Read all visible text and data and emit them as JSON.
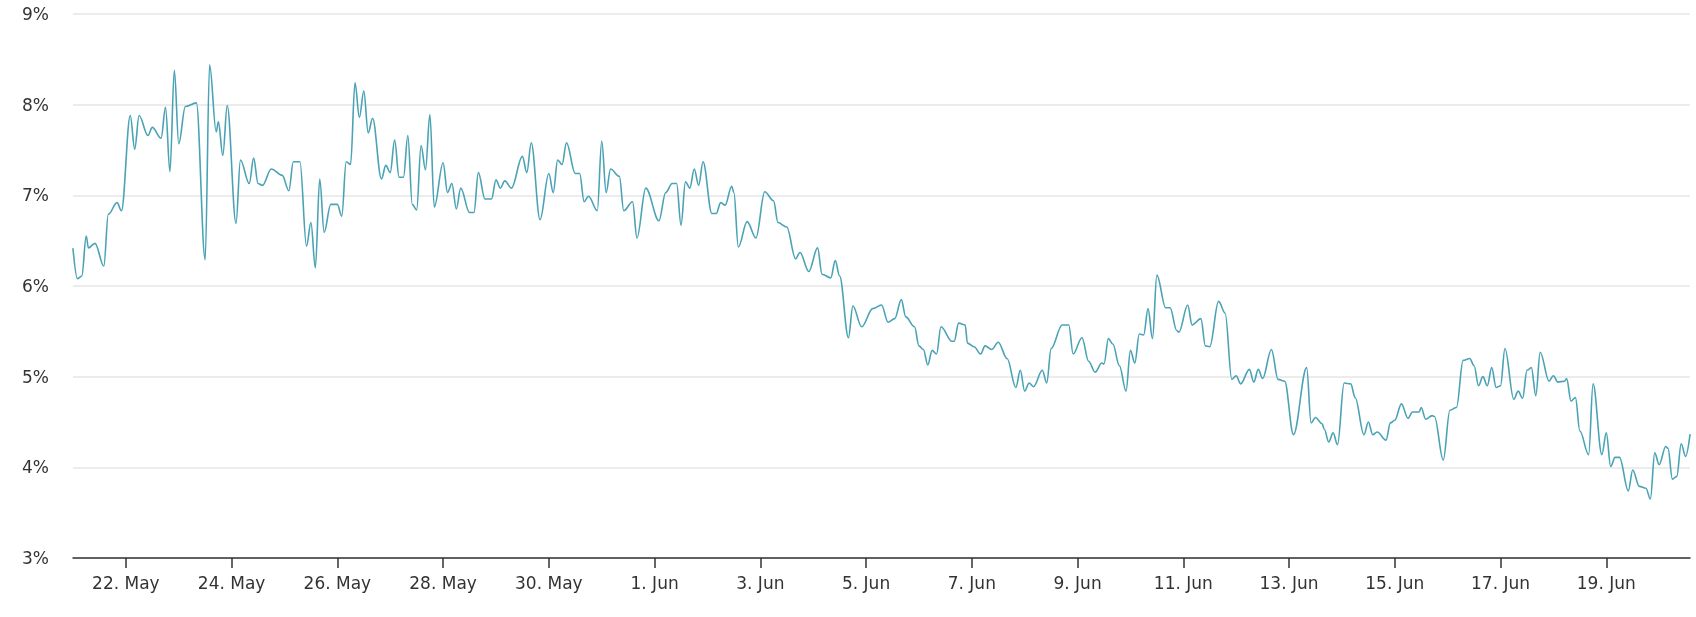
{
  "chart_data": {
    "type": "line",
    "x": [
      "--05-21T00:00",
      "--05-21T02:00",
      "--05-21T04:00",
      "--05-21T06:00",
      "--05-21T07:00",
      "--05-21T10:00",
      "--05-21T14:00",
      "--05-21T16:00",
      "--05-21T20:00",
      "--05-21T22:00",
      "--05-22T02:00",
      "--05-22T04:00",
      "--05-22T06:00",
      "--05-22T10:00",
      "--05-22T12:00",
      "--05-22T16:00",
      "--05-22T18:00",
      "--05-22T20:00",
      "--05-22T22:00",
      "--05-23T00:00",
      "--05-23T03:00",
      "--05-23T08:00",
      "--05-23T12:00",
      "--05-23T14:00",
      "--05-23T17:00",
      "--05-23T18:00",
      "--05-23T20:00",
      "--05-23T22:00",
      "--05-24T02:00",
      "--05-24T04:00",
      "--05-24T08:00",
      "--05-24T10:00",
      "--05-24T12:00",
      "--05-24T14:00",
      "--05-24T18:00",
      "--05-24T23:00",
      "--05-25T02:00",
      "--05-25T04:00",
      "--05-25T07:00",
      "--05-25T10:00",
      "--05-25T12:00",
      "--05-25T14:00",
      "--05-25T16:00",
      "--05-25T18:00",
      "--05-25T21:00",
      "--05-26T00:00",
      "--05-26T02:00",
      "--05-26T04:00",
      "--05-26T06:00",
      "--05-26T08:00",
      "--05-26T10:00",
      "--05-26T12:00",
      "--05-26T14:00",
      "--05-26T16:00",
      "--05-26T20:00",
      "--05-26T22:00",
      "--05-27T00:00",
      "--05-27T02:00",
      "--05-27T04:00",
      "--05-27T06:00",
      "--05-27T08:00",
      "--05-27T10:00",
      "--05-27T12:00",
      "--05-27T14:00",
      "--05-27T16:00",
      "--05-27T18:00",
      "--05-27T20:00",
      "--05-28T00:00",
      "--05-28T02:00",
      "--05-28T04:00",
      "--05-28T06:00",
      "--05-28T08:00",
      "--05-28T12:00",
      "--05-28T14:00",
      "--05-28T16:00",
      "--05-28T19:00",
      "--05-28T22:00",
      "--05-29T00:00",
      "--05-29T02:00",
      "--05-29T04:00",
      "--05-29T07:00",
      "--05-29T12:00",
      "--05-29T14:00",
      "--05-29T16:00",
      "--05-29T20:00",
      "--05-30T00:00",
      "--05-30T02:00",
      "--05-30T04:00",
      "--05-30T06:00",
      "--05-30T08:00",
      "--05-30T12:00",
      "--05-30T14:00",
      "--05-30T16:00",
      "--05-30T18:00",
      "--05-30T22:00",
      "--05-31T00:00",
      "--05-31T02:00",
      "--05-31T04:00",
      "--05-31T08:00",
      "--05-31T10:00",
      "--05-31T14:00",
      "--05-31T16:00",
      "--05-31T20:00",
      "--06-01T02:00",
      "--06-01T05:00",
      "--06-01T08:00",
      "--06-01T10:00",
      "--06-01T12:00",
      "--06-01T14:00",
      "--06-01T16:00",
      "--06-01T18:00",
      "--06-01T20:00",
      "--06-01T22:00",
      "--06-02T02:00",
      "--06-02T04:00",
      "--06-02T06:00",
      "--06-02T08:00",
      "--06-02T11:00",
      "--06-02T12:00",
      "--06-02T14:00",
      "--06-02T18:00",
      "--06-02T22:00",
      "--06-03T02:00",
      "--06-03T06:00",
      "--06-03T08:00",
      "--06-03T12:00",
      "--06-03T16:00",
      "--06-03T18:00",
      "--06-03T22:00",
      "--06-04T02:00",
      "--06-04T04:00",
      "--06-04T08:00",
      "--06-04T10:00",
      "--06-04T12:00",
      "--06-04T16:00",
      "--06-04T18:00",
      "--06-04T22:00",
      "--06-05T03:00",
      "--06-05T07:00",
      "--06-05T10:00",
      "--06-05T13:00",
      "--06-05T16:00",
      "--06-05T18:00",
      "--06-05T22:00",
      "--06-06T00:00",
      "--06-06T02:00",
      "--06-06T04:00",
      "--06-06T06:00",
      "--06-06T08:00",
      "--06-06T10:00",
      "--06-06T15:00",
      "--06-06T16:00",
      "--06-06T18:00",
      "--06-06T21:00",
      "--06-06T22:00",
      "--06-07T01:00",
      "--06-07T04:00",
      "--06-07T06:00",
      "--06-07T09:00",
      "--06-07T12:00",
      "--06-07T16:00",
      "--06-07T20:00",
      "--06-07T22:00",
      "--06-08T00:00",
      "--06-08T02:00",
      "--06-08T04:00",
      "--06-08T08:00",
      "--06-08T10:00",
      "--06-08T12:00",
      "--06-08T17:00",
      "--06-08T20:00",
      "--06-08T22:00",
      "--06-09T02:00",
      "--06-09T05:00",
      "--06-09T08:00",
      "--06-09T11:00",
      "--06-09T12:00",
      "--06-09T14:00",
      "--06-09T16:00",
      "--06-09T19:00",
      "--06-09T22:00",
      "--06-10T00:00",
      "--06-10T02:00",
      "--06-10T04:00",
      "--06-10T06:00",
      "--06-10T08:00",
      "--06-10T10:00",
      "--06-10T12:00",
      "--06-10T16:00",
      "--06-10T18:00",
      "--06-10T21:00",
      "--06-10T22:00",
      "--06-11T02:00",
      "--06-11T04:00",
      "--06-11T08:00",
      "--06-11T10:00",
      "--06-11T12:00",
      "--06-11T16:00",
      "--06-11T19:00",
      "--06-11T22:00",
      "--06-12T00:00",
      "--06-12T02:00",
      "--06-12T06:00",
      "--06-12T08:00",
      "--06-12T10:00",
      "--06-12T12:00",
      "--06-12T16:00",
      "--06-12T19:00",
      "--06-12T22:00",
      "--06-13T02:00",
      "--06-13T08:00",
      "--06-13T10:00",
      "--06-13T12:00",
      "--06-13T15:00",
      "--06-13T16:00",
      "--06-13T18:00",
      "--06-13T20:00",
      "--06-13T22:00",
      "--06-14T01:00",
      "--06-14T04:00",
      "--06-14T06:00",
      "--06-14T10:00",
      "--06-14T12:00",
      "--06-14T14:00",
      "--06-14T16:00",
      "--06-14T20:00",
      "--06-14T22:00",
      "--06-15T00:00",
      "--06-15T03:00",
      "--06-15T06:00",
      "--06-15T08:00",
      "--06-15T11:00",
      "--06-15T12:00",
      "--06-15T14:00",
      "--06-15T17:00",
      "--06-15T18:00",
      "--06-15T22:00",
      "--06-16T01:00",
      "--06-16T04:00",
      "--06-16T07:00",
      "--06-16T10:00",
      "--06-16T12:00",
      "--06-16T14:00",
      "--06-16T16:00",
      "--06-16T18:00",
      "--06-16T20:00",
      "--06-16T22:00",
      "--06-17T00:00",
      "--06-17T02:00",
      "--06-17T06:00",
      "--06-17T08:00",
      "--06-17T10:00",
      "--06-17T12:00",
      "--06-17T14:00",
      "--06-17T16:00",
      "--06-17T18:00",
      "--06-17T22:00",
      "--06-18T00:00",
      "--06-18T02:00",
      "--06-18T05:00",
      "--06-18T06:00",
      "--06-18T08:00",
      "--06-18T10:00",
      "--06-18T12:00",
      "--06-18T16:00",
      "--06-18T18:00",
      "--06-18T22:00",
      "--06-19T00:00",
      "--06-19T02:00",
      "--06-19T04:00",
      "--06-19T06:00",
      "--06-19T10:00",
      "--06-19T12:00",
      "--06-19T15:00",
      "--06-19T18:00",
      "--06-19T20:00",
      "--06-19T22:00",
      "--06-20T00:00",
      "--06-20T03:00",
      "--06-20T04:00",
      "--06-20T06:00",
      "--06-20T08:00",
      "--06-20T10:00",
      "--06-20T12:00",
      "--06-20T14:00"
    ],
    "series": [
      {
        "color": "#4aa3b5",
        "values": [
          6.41,
          6.08,
          6.11,
          6.55,
          6.42,
          6.47,
          6.22,
          6.79,
          6.92,
          6.83,
          7.88,
          7.51,
          7.88,
          7.66,
          7.75,
          7.63,
          7.97,
          7.26,
          8.38,
          7.57,
          7.98,
          8.02,
          6.29,
          8.44,
          7.7,
          7.81,
          7.44,
          7.99,
          6.69,
          7.39,
          7.13,
          7.41,
          7.13,
          7.11,
          7.29,
          7.22,
          7.05,
          7.37,
          7.37,
          6.44,
          6.7,
          6.2,
          7.18,
          6.59,
          6.9,
          6.9,
          6.77,
          7.37,
          7.34,
          8.24,
          7.86,
          8.15,
          7.69,
          7.85,
          7.18,
          7.33,
          7.25,
          7.61,
          7.2,
          7.2,
          7.66,
          6.9,
          6.84,
          7.55,
          7.28,
          7.89,
          6.87,
          7.36,
          7.03,
          7.13,
          6.85,
          7.08,
          6.81,
          6.81,
          7.25,
          6.96,
          6.96,
          7.17,
          7.08,
          7.16,
          7.08,
          7.43,
          7.25,
          7.58,
          6.73,
          7.24,
          7.03,
          7.39,
          7.34,
          7.58,
          7.24,
          7.24,
          6.93,
          6.99,
          6.83,
          7.6,
          7.03,
          7.29,
          7.21,
          6.83,
          6.93,
          6.53,
          7.08,
          6.72,
          7.03,
          7.13,
          7.13,
          6.67,
          7.15,
          7.08,
          7.29,
          7.11,
          7.37,
          6.8,
          6.8,
          6.92,
          6.89,
          7.1,
          7.03,
          6.43,
          6.71,
          6.53,
          7.04,
          6.94,
          6.7,
          6.65,
          6.3,
          6.37,
          6.16,
          6.42,
          6.13,
          6.09,
          6.28,
          6.11,
          5.43,
          5.78,
          5.55,
          5.75,
          5.79,
          5.6,
          5.64,
          5.85,
          5.66,
          5.55,
          5.34,
          5.3,
          5.13,
          5.29,
          5.25,
          5.55,
          5.39,
          5.39,
          5.59,
          5.57,
          5.37,
          5.33,
          5.25,
          5.34,
          5.3,
          5.38,
          5.2,
          4.88,
          5.07,
          4.84,
          4.93,
          4.89,
          5.07,
          4.93,
          5.31,
          5.57,
          5.57,
          5.25,
          5.43,
          5.17,
          5.05,
          5.15,
          5.14,
          5.42,
          5.36,
          5.12,
          4.84,
          5.29,
          5.15,
          5.47,
          5.46,
          5.75,
          5.42,
          6.12,
          5.76,
          5.76,
          5.51,
          5.49,
          5.79,
          5.57,
          5.64,
          5.34,
          5.33,
          5.83,
          5.7,
          4.97,
          5.01,
          4.92,
          5.08,
          4.94,
          5.08,
          4.98,
          5.3,
          4.97,
          4.95,
          4.36,
          5.1,
          4.49,
          4.55,
          4.48,
          4.42,
          4.28,
          4.38,
          4.25,
          4.93,
          4.92,
          4.77,
          4.36,
          4.5,
          4.36,
          4.39,
          4.3,
          4.49,
          4.52,
          4.7,
          4.54,
          4.61,
          4.61,
          4.66,
          4.53,
          4.57,
          4.56,
          4.08,
          4.63,
          4.66,
          5.18,
          5.2,
          5.12,
          4.9,
          5.0,
          4.9,
          5.1,
          4.88,
          4.9,
          5.31,
          4.75,
          4.84,
          4.76,
          5.07,
          5.1,
          4.79,
          5.27,
          4.95,
          5.01,
          4.94,
          4.95,
          4.98,
          4.73,
          4.77,
          4.4,
          4.14,
          4.92,
          4.14,
          4.38,
          4.01,
          4.11,
          4.11,
          3.74,
          3.97,
          3.79,
          3.77,
          3.65,
          4.16,
          4.03,
          4.23,
          4.21,
          3.87,
          3.9,
          4.26,
          4.12,
          4.36
        ]
      }
    ],
    "xlim": [
      "--05-21T00:00",
      "--06-20T14:00"
    ],
    "xticks": [
      {
        "value": "--05-22",
        "label": "22. May"
      },
      {
        "value": "--05-24",
        "label": "24. May"
      },
      {
        "value": "--05-26",
        "label": "26. May"
      },
      {
        "value": "--05-28",
        "label": "28. May"
      },
      {
        "value": "--05-30",
        "label": "30. May"
      },
      {
        "value": "--06-01",
        "label": "1. Jun"
      },
      {
        "value": "--06-03",
        "label": "3. Jun"
      },
      {
        "value": "--06-05",
        "label": "5. Jun"
      },
      {
        "value": "--06-07",
        "label": "7. Jun"
      },
      {
        "value": "--06-09",
        "label": "9. Jun"
      },
      {
        "value": "--06-11",
        "label": "11. Jun"
      },
      {
        "value": "--06-13",
        "label": "13. Jun"
      },
      {
        "value": "--06-15",
        "label": "15. Jun"
      },
      {
        "value": "--06-17",
        "label": "17. Jun"
      },
      {
        "value": "--06-19",
        "label": "19. Jun"
      }
    ],
    "ylim": [
      3,
      9
    ],
    "yticks": [
      {
        "value": 3,
        "label": "3%"
      },
      {
        "value": 4,
        "label": "4%"
      },
      {
        "value": 5,
        "label": "5%"
      },
      {
        "value": 6,
        "label": "6%"
      },
      {
        "value": 7,
        "label": "7%"
      },
      {
        "value": 8,
        "label": "8%"
      },
      {
        "value": 9,
        "label": "9%"
      }
    ],
    "grid": "y",
    "marker": "none",
    "line_style": "solid"
  }
}
